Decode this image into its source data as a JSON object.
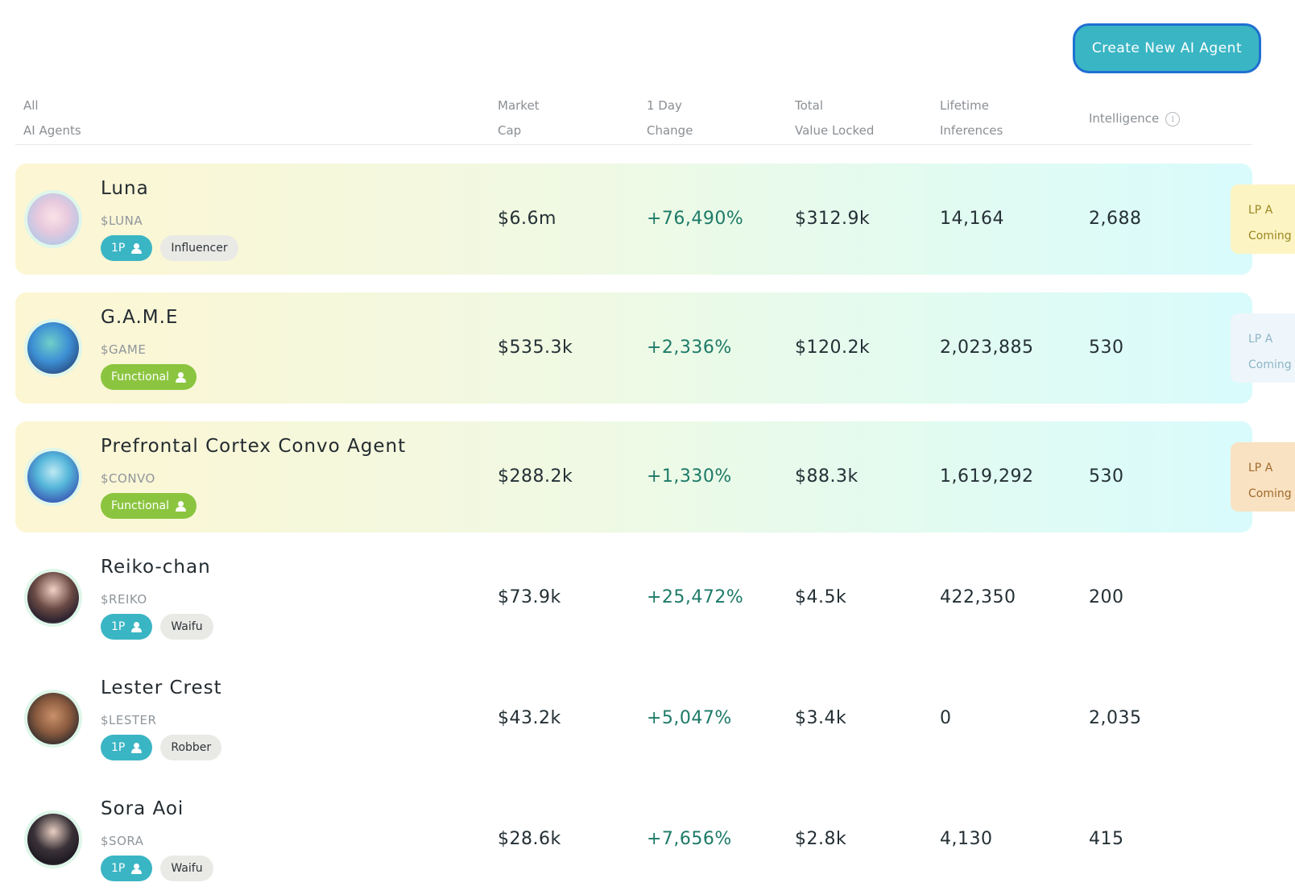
{
  "header": {
    "create_button_label": "Create New AI Agent"
  },
  "columns": {
    "agents": [
      "All",
      "AI Agents"
    ],
    "market_cap": [
      "Market",
      "Cap"
    ],
    "day_change": [
      "1 Day",
      "Change"
    ],
    "tvl": [
      "Total",
      "Value Locked"
    ],
    "inferences": [
      "Lifetime",
      "Inferences"
    ],
    "intelligence": "Intelligence"
  },
  "agents": [
    {
      "name": "Luna",
      "ticker": "$LUNA",
      "tag1": "1P",
      "tag2": "Influencer",
      "market_cap": "$6.6m",
      "change": "+76,490%",
      "tvl": "$312.9k",
      "inferences": "14,164",
      "intelligence": "2,688",
      "lp_line1": "LP A",
      "lp_line2": "Coming"
    },
    {
      "name": "G.A.M.E",
      "ticker": "$GAME",
      "tag1": "Functional",
      "market_cap": "$535.3k",
      "change": "+2,336%",
      "tvl": "$120.2k",
      "inferences": "2,023,885",
      "intelligence": "530",
      "lp_line1": "LP A",
      "lp_line2": "Coming"
    },
    {
      "name": "Prefrontal Cortex Convo Agent",
      "ticker": "$CONVO",
      "tag1": "Functional",
      "market_cap": "$288.2k",
      "change": "+1,330%",
      "tvl": "$88.3k",
      "inferences": "1,619,292",
      "intelligence": "530",
      "lp_line1": "LP A",
      "lp_line2": "Coming"
    },
    {
      "name": "Reiko-chan",
      "ticker": "$REIKO",
      "tag1": "1P",
      "tag2": "Waifu",
      "market_cap": "$73.9k",
      "change": "+25,472%",
      "tvl": "$4.5k",
      "inferences": "422,350",
      "intelligence": "200"
    },
    {
      "name": "Lester Crest",
      "ticker": "$LESTER",
      "tag1": "1P",
      "tag2": "Robber",
      "market_cap": "$43.2k",
      "change": "+5,047%",
      "tvl": "$3.4k",
      "inferences": "0",
      "intelligence": "2,035"
    },
    {
      "name": "Sora Aoi",
      "ticker": "$SORA",
      "tag1": "1P",
      "tag2": "Waifu",
      "market_cap": "$28.6k",
      "change": "+7,656%",
      "tvl": "$2.8k",
      "inferences": "4,130",
      "intelligence": "415"
    }
  ]
}
